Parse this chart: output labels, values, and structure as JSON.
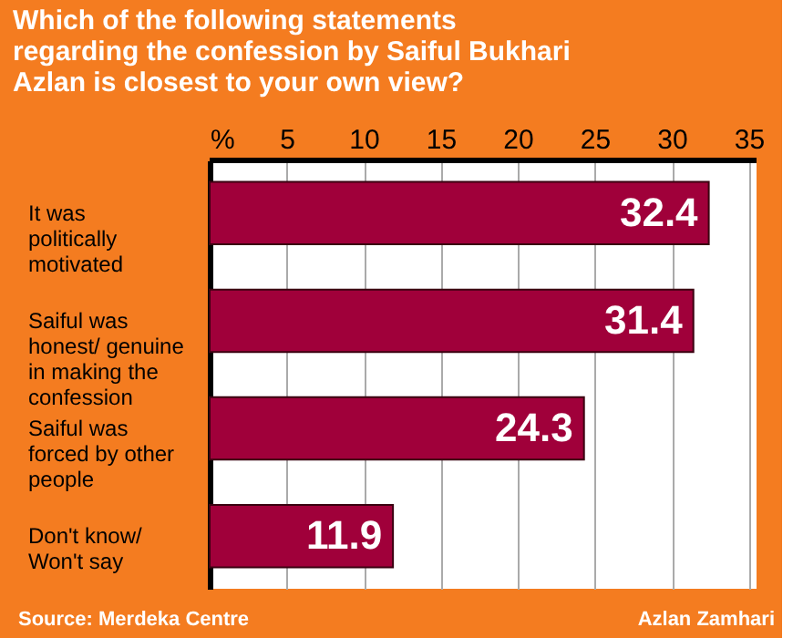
{
  "chart_data": {
    "type": "bar",
    "orientation": "horizontal",
    "title": "Which of the following statements regarding the confession by Saiful Bukhari Azlan is closest to your own view?",
    "categories": [
      "It was politically motivated",
      "Saiful was honest/ genuine in making the confession",
      "Saiful was forced by other people",
      "Don't know/ Won't say"
    ],
    "values": [
      32.4,
      31.4,
      24.3,
      11.9
    ],
    "color": "#a0003a",
    "data_labels": true,
    "xlim": [
      0,
      35.5
    ],
    "xticks": [
      {
        "value": 0,
        "label": "%"
      },
      5,
      10,
      15,
      20,
      25,
      30,
      35
    ],
    "grid": "x",
    "annotations": [
      "Source: Merdeka Centre",
      "Azlan Zamhari"
    ]
  }
}
